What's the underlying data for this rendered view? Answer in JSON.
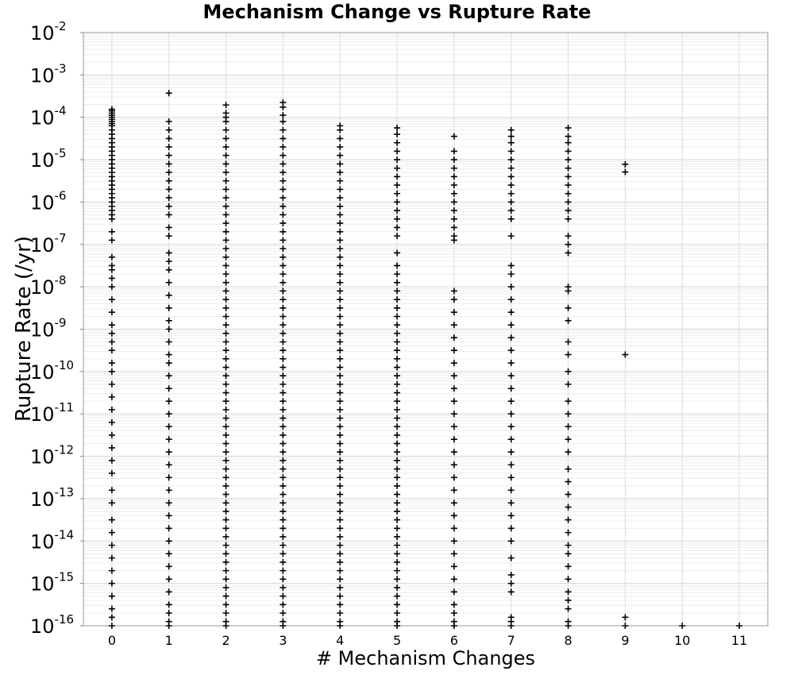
{
  "chart_data": {
    "type": "scatter",
    "title": "Mechanism Change vs Rupture Rate",
    "xlabel": "# Mechanism Changes",
    "ylabel": "Rupture Rate (/yr)",
    "x_ticks": [
      "0",
      "1",
      "2",
      "3",
      "4",
      "5",
      "6",
      "7",
      "8",
      "9",
      "10",
      "11"
    ],
    "xlim": [
      -0.5,
      11.5
    ],
    "y_scale": "log",
    "ylim": [
      1e-16,
      0.01
    ],
    "y_ticks": [
      {
        "base": "10",
        "exp": "-2"
      },
      {
        "base": "10",
        "exp": "-3"
      },
      {
        "base": "10",
        "exp": "-4"
      },
      {
        "base": "10",
        "exp": "-5"
      },
      {
        "base": "10",
        "exp": "-6"
      },
      {
        "base": "10",
        "exp": "-7"
      },
      {
        "base": "10",
        "exp": "-8"
      },
      {
        "base": "10",
        "exp": "-9"
      },
      {
        "base": "10",
        "exp": "-10"
      },
      {
        "base": "10",
        "exp": "-11"
      },
      {
        "base": "10",
        "exp": "-12"
      },
      {
        "base": "10",
        "exp": "-13"
      },
      {
        "base": "10",
        "exp": "-14"
      },
      {
        "base": "10",
        "exp": "-15"
      },
      {
        "base": "10",
        "exp": "-16"
      }
    ],
    "grid": true,
    "marker": "+",
    "marker_color": "#000000",
    "series": [
      {
        "points_log10": [
          {
            "x": 0,
            "y": [
              -3.81,
              -3.85,
              -3.9,
              -3.95,
              -4.0,
              -4.05,
              -4.1,
              -4.15,
              -4.2,
              -4.3,
              -4.4,
              -4.5,
              -4.6,
              -4.7,
              -4.8,
              -4.9,
              -5.0,
              -5.1,
              -5.2,
              -5.3,
              -5.4,
              -5.5,
              -5.6,
              -5.7,
              -5.8,
              -5.9,
              -6.0,
              -6.1,
              -6.2,
              -6.3,
              -6.4,
              -6.7,
              -6.9,
              -7.3,
              -7.5,
              -7.6,
              -7.8,
              -8.0,
              -8.3,
              -8.6,
              -8.9,
              -9.1,
              -9.3,
              -9.5,
              -9.8,
              -10.0,
              -10.3,
              -10.6,
              -10.9,
              -11.2,
              -11.5,
              -11.8,
              -12.1,
              -12.4,
              -12.8,
              -13.1,
              -13.5,
              -13.8,
              -14.1,
              -14.4,
              -14.7,
              -15.0,
              -15.3,
              -15.6,
              -15.8,
              -16.0
            ]
          },
          {
            "x": 1,
            "y": [
              -3.43,
              -4.1,
              -4.3,
              -4.5,
              -4.7,
              -4.9,
              -5.1,
              -5.3,
              -5.5,
              -5.7,
              -5.9,
              -6.1,
              -6.3,
              -6.6,
              -6.8,
              -7.2,
              -7.4,
              -7.6,
              -7.9,
              -8.2,
              -8.5,
              -8.8,
              -9.0,
              -9.3,
              -9.6,
              -9.8,
              -10.1,
              -10.4,
              -10.7,
              -11.0,
              -11.3,
              -11.6,
              -11.9,
              -12.2,
              -12.5,
              -12.8,
              -13.1,
              -13.4,
              -13.7,
              -14.0,
              -14.3,
              -14.6,
              -14.9,
              -15.2,
              -15.5,
              -15.7,
              -15.9,
              -16.0
            ]
          },
          {
            "x": 2,
            "y": [
              -3.71,
              -3.9,
              -4.0,
              -4.1,
              -4.3,
              -4.5,
              -4.7,
              -4.9,
              -5.1,
              -5.3,
              -5.5,
              -5.7,
              -5.9,
              -6.1,
              -6.3,
              -6.5,
              -6.7,
              -6.9,
              -7.1,
              -7.3,
              -7.5,
              -7.7,
              -7.9,
              -8.1,
              -8.3,
              -8.5,
              -8.7,
              -8.9,
              -9.1,
              -9.3,
              -9.5,
              -9.7,
              -9.9,
              -10.1,
              -10.3,
              -10.5,
              -10.7,
              -10.9,
              -11.1,
              -11.3,
              -11.5,
              -11.7,
              -11.9,
              -12.1,
              -12.3,
              -12.5,
              -12.7,
              -12.9,
              -13.1,
              -13.3,
              -13.5,
              -13.7,
              -13.9,
              -14.1,
              -14.3,
              -14.5,
              -14.7,
              -14.9,
              -15.1,
              -15.3,
              -15.5,
              -15.7,
              -15.9,
              -16.0
            ]
          },
          {
            "x": 3,
            "y": [
              -3.65,
              -3.76,
              -3.95,
              -4.1,
              -4.3,
              -4.5,
              -4.7,
              -4.9,
              -5.1,
              -5.3,
              -5.5,
              -5.7,
              -5.9,
              -6.1,
              -6.3,
              -6.5,
              -6.7,
              -6.9,
              -7.1,
              -7.3,
              -7.5,
              -7.7,
              -7.9,
              -8.1,
              -8.3,
              -8.5,
              -8.7,
              -8.9,
              -9.1,
              -9.3,
              -9.5,
              -9.7,
              -9.9,
              -10.1,
              -10.3,
              -10.5,
              -10.7,
              -10.9,
              -11.1,
              -11.3,
              -11.5,
              -11.7,
              -11.9,
              -12.1,
              -12.3,
              -12.5,
              -12.7,
              -12.9,
              -13.1,
              -13.3,
              -13.5,
              -13.7,
              -13.9,
              -14.1,
              -14.3,
              -14.5,
              -14.7,
              -14.9,
              -15.1,
              -15.3,
              -15.5,
              -15.7,
              -15.9,
              -16.0
            ]
          },
          {
            "x": 4,
            "y": [
              -4.2,
              -4.3,
              -4.5,
              -4.7,
              -4.9,
              -5.1,
              -5.3,
              -5.5,
              -5.7,
              -5.9,
              -6.1,
              -6.3,
              -6.5,
              -6.7,
              -6.9,
              -7.1,
              -7.3,
              -7.5,
              -7.7,
              -7.9,
              -8.1,
              -8.3,
              -8.5,
              -8.7,
              -8.9,
              -9.1,
              -9.3,
              -9.5,
              -9.7,
              -9.9,
              -10.1,
              -10.3,
              -10.5,
              -10.7,
              -10.9,
              -11.1,
              -11.3,
              -11.5,
              -11.7,
              -11.9,
              -12.1,
              -12.3,
              -12.5,
              -12.7,
              -12.9,
              -13.1,
              -13.3,
              -13.5,
              -13.7,
              -13.9,
              -14.1,
              -14.3,
              -14.5,
              -14.7,
              -14.9,
              -15.1,
              -15.3,
              -15.5,
              -15.7,
              -15.9,
              -16.0
            ]
          },
          {
            "x": 5,
            "y": [
              -4.25,
              -4.4,
              -4.6,
              -4.8,
              -5.0,
              -5.2,
              -5.4,
              -5.6,
              -5.8,
              -6.0,
              -6.2,
              -6.4,
              -6.6,
              -6.8,
              -7.2,
              -7.5,
              -7.7,
              -7.9,
              -8.1,
              -8.3,
              -8.5,
              -8.7,
              -8.9,
              -9.1,
              -9.3,
              -9.5,
              -9.7,
              -9.9,
              -10.1,
              -10.3,
              -10.5,
              -10.7,
              -10.9,
              -11.1,
              -11.3,
              -11.5,
              -11.7,
              -11.9,
              -12.1,
              -12.3,
              -12.5,
              -12.7,
              -12.9,
              -13.1,
              -13.3,
              -13.5,
              -13.7,
              -13.9,
              -14.1,
              -14.3,
              -14.5,
              -14.7,
              -14.9,
              -15.1,
              -15.3,
              -15.5,
              -15.7,
              -15.9,
              -16.0
            ]
          },
          {
            "x": 6,
            "y": [
              -4.45,
              -4.8,
              -5.0,
              -5.2,
              -5.4,
              -5.6,
              -5.8,
              -6.0,
              -6.2,
              -6.4,
              -6.6,
              -6.8,
              -6.9,
              -8.1,
              -8.3,
              -8.6,
              -8.9,
              -9.2,
              -9.5,
              -9.8,
              -10.1,
              -10.4,
              -10.7,
              -11.0,
              -11.3,
              -11.6,
              -11.9,
              -12.2,
              -12.5,
              -12.8,
              -13.1,
              -13.4,
              -13.7,
              -14.0,
              -14.3,
              -14.6,
              -14.9,
              -15.2,
              -15.5,
              -15.7,
              -15.9,
              -16.0
            ]
          },
          {
            "x": 7,
            "y": [
              -4.3,
              -4.45,
              -4.6,
              -4.8,
              -5.0,
              -5.2,
              -5.4,
              -5.6,
              -5.8,
              -6.0,
              -6.2,
              -6.4,
              -6.8,
              -7.5,
              -7.7,
              -8.0,
              -8.3,
              -8.6,
              -8.9,
              -9.2,
              -9.5,
              -9.8,
              -10.1,
              -10.4,
              -10.7,
              -11.0,
              -11.3,
              -11.6,
              -11.9,
              -12.2,
              -12.5,
              -12.8,
              -13.1,
              -13.4,
              -13.7,
              -14.0,
              -14.4,
              -14.8,
              -15.0,
              -15.2,
              -15.8,
              -15.9,
              -16.0
            ]
          },
          {
            "x": 8,
            "y": [
              -4.25,
              -4.45,
              -4.6,
              -4.8,
              -5.0,
              -5.2,
              -5.4,
              -5.6,
              -5.8,
              -6.0,
              -6.2,
              -6.4,
              -6.8,
              -7.0,
              -7.2,
              -8.0,
              -8.1,
              -8.5,
              -8.8,
              -9.3,
              -9.6,
              -10.0,
              -10.3,
              -10.7,
              -11.0,
              -11.3,
              -11.6,
              -11.9,
              -12.3,
              -12.6,
              -12.9,
              -13.2,
              -13.5,
              -13.8,
              -14.1,
              -14.3,
              -14.6,
              -14.9,
              -15.2,
              -15.4,
              -15.6,
              -15.9,
              -16.0
            ]
          },
          {
            "x": 9,
            "y": [
              -5.11,
              -5.29,
              -9.6,
              -15.8,
              -16.0
            ]
          },
          {
            "x": 10,
            "y": [
              -16.0
            ]
          },
          {
            "x": 11,
            "y": [
              -16.0
            ]
          }
        ]
      }
    ]
  }
}
